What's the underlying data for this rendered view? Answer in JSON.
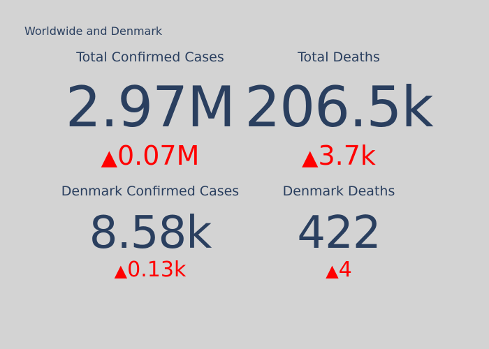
{
  "title": "Worldwide and Denmark",
  "colors": {
    "background": "#d3d3d3",
    "text": "#2a3f5f",
    "delta_increase": "#ff0000"
  },
  "chart_data": {
    "type": "indicator",
    "title": "Worldwide and Denmark",
    "indicators": [
      {
        "title": "Total Confirmed Cases",
        "value_text": "2.97M",
        "value": 2970000,
        "delta_symbol": "▲",
        "delta_text": "0.07M",
        "delta": 70000,
        "direction": "increase"
      },
      {
        "title": "Total Deaths",
        "value_text": "206.5k",
        "value": 206500,
        "delta_symbol": "▲",
        "delta_text": "3.7k",
        "delta": 3700,
        "direction": "increase"
      },
      {
        "title": "Denmark Confirmed Cases",
        "value_text": "8.58k",
        "value": 8580,
        "delta_symbol": "▲",
        "delta_text": "0.13k",
        "delta": 130,
        "direction": "increase"
      },
      {
        "title": "Denmark Deaths",
        "value_text": "422",
        "value": 422,
        "delta_symbol": "▲",
        "delta_text": "4",
        "delta": 4,
        "direction": "increase"
      }
    ]
  }
}
